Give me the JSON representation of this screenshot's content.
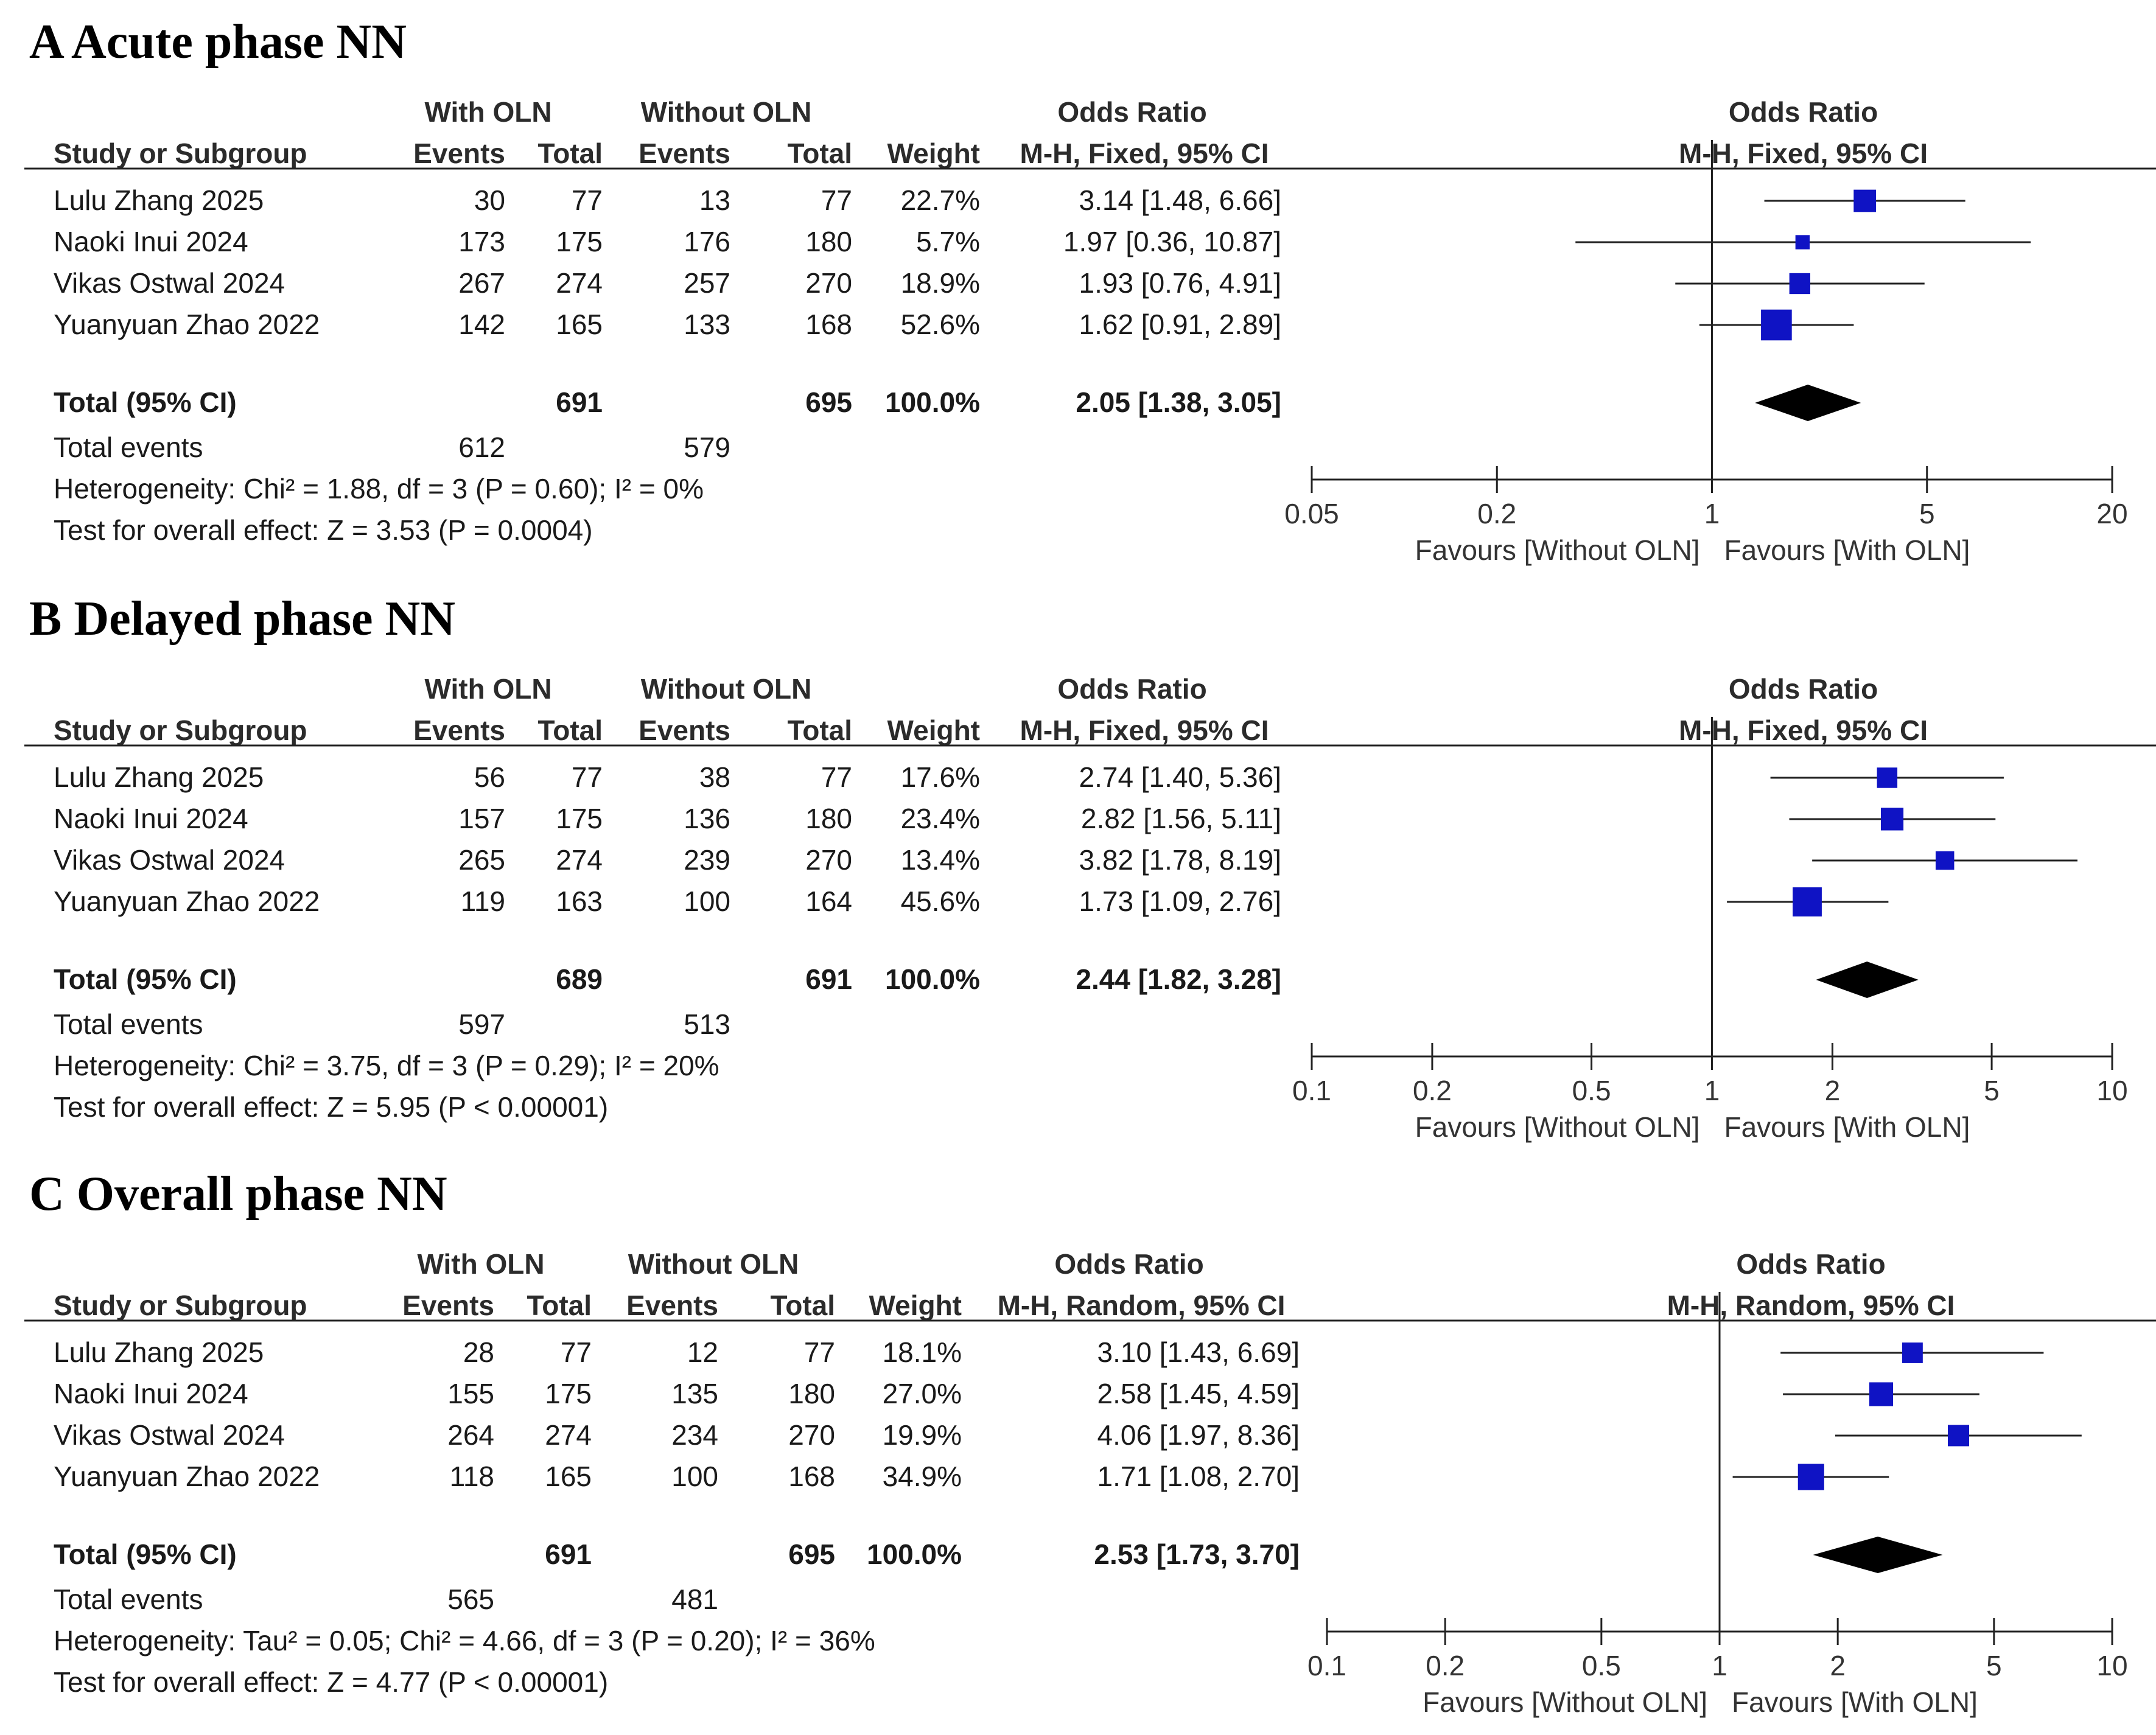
{
  "chart_data": [
    {
      "type": "forest",
      "title": "A Acute phase NN",
      "group1": "With OLN",
      "group2": "Without OLN",
      "col_headers": {
        "study": "Study or Subgroup",
        "events": "Events",
        "total": "Total",
        "weight": "Weight"
      },
      "effect_header": "Odds Ratio",
      "method": "M-H, Fixed, 95% CI",
      "studies": [
        {
          "name": "Lulu Zhang 2025",
          "e1": "30",
          "n1": "77",
          "e2": "13",
          "n2": "77",
          "weight": "22.7%",
          "ci_text": "3.14 [1.48, 6.66]",
          "or": 3.14,
          "lo": 1.48,
          "hi": 6.66,
          "w": 22.7
        },
        {
          "name": "Naoki Inui 2024",
          "e1": "173",
          "n1": "175",
          "e2": "176",
          "n2": "180",
          "weight": "5.7%",
          "ci_text": "1.97 [0.36, 10.87]",
          "or": 1.97,
          "lo": 0.36,
          "hi": 10.87,
          "w": 5.7
        },
        {
          "name": "Vikas Ostwal 2024",
          "e1": "267",
          "n1": "274",
          "e2": "257",
          "n2": "270",
          "weight": "18.9%",
          "ci_text": "1.93 [0.76, 4.91]",
          "or": 1.93,
          "lo": 0.76,
          "hi": 4.91,
          "w": 18.9
        },
        {
          "name": "Yuanyuan Zhao 2022",
          "e1": "142",
          "n1": "165",
          "e2": "133",
          "n2": "168",
          "weight": "52.6%",
          "ci_text": "1.62 [0.91, 2.89]",
          "or": 1.62,
          "lo": 0.91,
          "hi": 2.89,
          "w": 52.6
        }
      ],
      "total": {
        "label": "Total (95% CI)",
        "n1": "691",
        "n2": "695",
        "weight": "100.0%",
        "ci_text": "2.05 [1.38, 3.05]",
        "or": 2.05,
        "lo": 1.38,
        "hi": 3.05
      },
      "events": {
        "label": "Total events",
        "e1": "612",
        "e2": "579"
      },
      "heterogeneity": "Heterogeneity: Chi² = 1.88, df = 3 (P = 0.60); I² = 0%",
      "overall": "Test for overall effect: Z = 3.53 (P = 0.0004)",
      "axis": {
        "min": 0.05,
        "max": 20,
        "ticks": [
          0.05,
          0.2,
          1,
          5,
          20
        ],
        "tick_labels": [
          "0.05",
          "0.2",
          "1",
          "5",
          "20"
        ]
      },
      "favours_left": "Favours [Without OLN]",
      "favours_right": "Favours [With OLN]"
    },
    {
      "type": "forest",
      "title": "B Delayed phase NN",
      "group1": "With OLN",
      "group2": "Without OLN",
      "col_headers": {
        "study": "Study or Subgroup",
        "events": "Events",
        "total": "Total",
        "weight": "Weight"
      },
      "effect_header": "Odds Ratio",
      "method": "M-H, Fixed, 95% CI",
      "studies": [
        {
          "name": "Lulu Zhang 2025",
          "e1": "56",
          "n1": "77",
          "e2": "38",
          "n2": "77",
          "weight": "17.6%",
          "ci_text": "2.74 [1.40, 5.36]",
          "or": 2.74,
          "lo": 1.4,
          "hi": 5.36,
          "w": 17.6
        },
        {
          "name": "Naoki Inui 2024",
          "e1": "157",
          "n1": "175",
          "e2": "136",
          "n2": "180",
          "weight": "23.4%",
          "ci_text": "2.82 [1.56, 5.11]",
          "or": 2.82,
          "lo": 1.56,
          "hi": 5.11,
          "w": 23.4
        },
        {
          "name": "Vikas Ostwal 2024",
          "e1": "265",
          "n1": "274",
          "e2": "239",
          "n2": "270",
          "weight": "13.4%",
          "ci_text": "3.82 [1.78, 8.19]",
          "or": 3.82,
          "lo": 1.78,
          "hi": 8.19,
          "w": 13.4
        },
        {
          "name": "Yuanyuan Zhao 2022",
          "e1": "119",
          "n1": "163",
          "e2": "100",
          "n2": "164",
          "weight": "45.6%",
          "ci_text": "1.73 [1.09, 2.76]",
          "or": 1.73,
          "lo": 1.09,
          "hi": 2.76,
          "w": 45.6
        }
      ],
      "total": {
        "label": "Total (95% CI)",
        "n1": "689",
        "n2": "691",
        "weight": "100.0%",
        "ci_text": "2.44 [1.82, 3.28]",
        "or": 2.44,
        "lo": 1.82,
        "hi": 3.28
      },
      "events": {
        "label": "Total events",
        "e1": "597",
        "e2": "513"
      },
      "heterogeneity": "Heterogeneity: Chi² = 3.75, df = 3 (P = 0.29); I² = 20%",
      "overall": "Test for overall effect: Z = 5.95 (P < 0.00001)",
      "axis": {
        "min": 0.1,
        "max": 10,
        "ticks": [
          0.1,
          0.2,
          0.5,
          1,
          2,
          5,
          10
        ],
        "tick_labels": [
          "0.1",
          "0.2",
          "0.5",
          "1",
          "2",
          "5",
          "10"
        ]
      },
      "favours_left": "Favours [Without OLN]",
      "favours_right": "Favours [With OLN]"
    },
    {
      "type": "forest",
      "title": "C Overall phase NN",
      "group1": "With OLN",
      "group2": "Without OLN",
      "col_headers": {
        "study": "Study or Subgroup",
        "events": "Events",
        "total": "Total",
        "weight": "Weight"
      },
      "effect_header": "Odds Ratio",
      "method": "M-H, Random, 95% CI",
      "studies": [
        {
          "name": "Lulu Zhang 2025",
          "e1": "28",
          "n1": "77",
          "e2": "12",
          "n2": "77",
          "weight": "18.1%",
          "ci_text": "3.10 [1.43, 6.69]",
          "or": 3.1,
          "lo": 1.43,
          "hi": 6.69,
          "w": 18.1
        },
        {
          "name": "Naoki Inui 2024",
          "e1": "155",
          "n1": "175",
          "e2": "135",
          "n2": "180",
          "weight": "27.0%",
          "ci_text": "2.58 [1.45, 4.59]",
          "or": 2.58,
          "lo": 1.45,
          "hi": 4.59,
          "w": 27.0
        },
        {
          "name": "Vikas Ostwal 2024",
          "e1": "264",
          "n1": "274",
          "e2": "234",
          "n2": "270",
          "weight": "19.9%",
          "ci_text": "4.06 [1.97, 8.36]",
          "or": 4.06,
          "lo": 1.97,
          "hi": 8.36,
          "w": 19.9
        },
        {
          "name": "Yuanyuan Zhao 2022",
          "e1": "118",
          "n1": "165",
          "e2": "100",
          "n2": "168",
          "weight": "34.9%",
          "ci_text": "1.71 [1.08, 2.70]",
          "or": 1.71,
          "lo": 1.08,
          "hi": 2.7,
          "w": 34.9
        }
      ],
      "total": {
        "label": "Total (95% CI)",
        "n1": "691",
        "n2": "695",
        "weight": "100.0%",
        "ci_text": "2.53 [1.73, 3.70]",
        "or": 2.53,
        "lo": 1.73,
        "hi": 3.7
      },
      "events": {
        "label": "Total events",
        "e1": "565",
        "e2": "481"
      },
      "heterogeneity": "Heterogeneity: Tau² = 0.05; Chi² = 4.66, df = 3 (P = 0.20); I² = 36%",
      "overall": "Test for overall effect: Z = 4.77 (P < 0.00001)",
      "axis": {
        "min": 0.1,
        "max": 10,
        "ticks": [
          0.1,
          0.2,
          0.5,
          1,
          2,
          5,
          10
        ],
        "tick_labels": [
          "0.1",
          "0.2",
          "0.5",
          "1",
          "2",
          "5",
          "10"
        ]
      },
      "favours_left": "Favours [Without OLN]",
      "favours_right": "Favours [With OLN]"
    }
  ],
  "colors": {
    "square": "#0f13c4",
    "diamond": "#000000",
    "line": "#222222",
    "text": "#1a1a1a"
  }
}
